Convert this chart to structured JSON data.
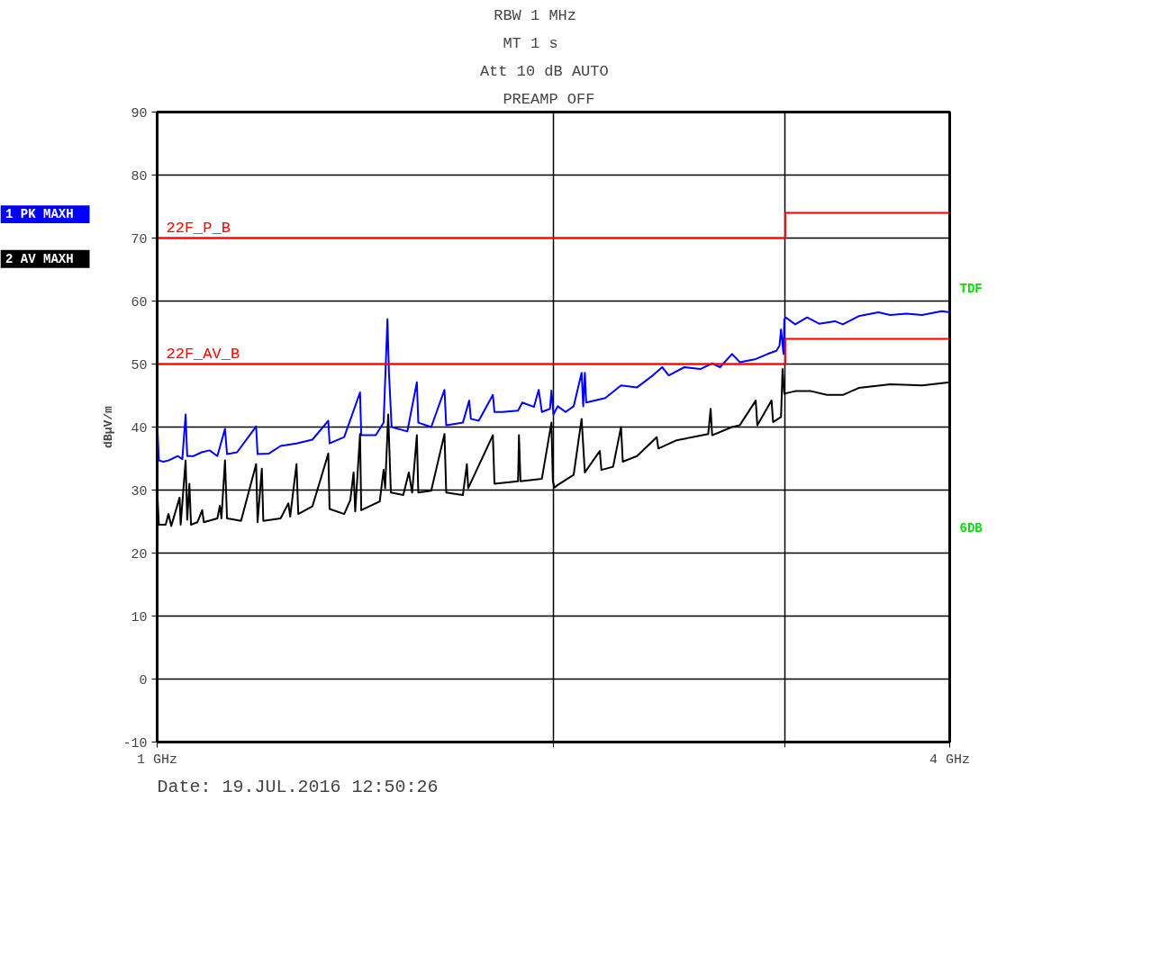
{
  "chart_data": {
    "type": "line",
    "ylabel": "dBµV/m",
    "log": "x",
    "grid": true,
    "legend": "left",
    "marker": "none",
    "line_style": "solid",
    "xlim": [
      1,
      4
    ],
    "xticks": [
      {
        "value": 1,
        "label": "1 GHz"
      },
      {
        "value": 2,
        "label": null
      },
      {
        "value": 3,
        "label": null
      },
      {
        "value": 4,
        "label": "4 GHz"
      }
    ],
    "ylim": [
      -10,
      90
    ],
    "yticks": [
      -10,
      0,
      10,
      20,
      30,
      40,
      50,
      60,
      70,
      80,
      90
    ],
    "annotations": [
      "RBW     1 MHz",
      "MT      1 s",
      "Att  10 dB  AUTO",
      "PREAMP  OFF",
      "TDF",
      "6DB",
      "Date: 19.JUL.2016  12:50:26"
    ],
    "series": [
      {
        "name": "1 PK MAXH",
        "color": "#0000ff",
        "x": [
          1.0,
          1.003,
          1.011,
          1.02,
          1.037,
          1.045,
          1.051,
          1.054,
          1.066,
          1.081,
          1.096,
          1.111,
          1.126,
          1.13,
          1.15,
          1.189,
          1.192,
          1.216,
          1.241,
          1.276,
          1.312,
          1.349,
          1.352,
          1.387,
          1.426,
          1.429,
          1.466,
          1.486,
          1.496,
          1.5,
          1.507,
          1.549,
          1.575,
          1.579,
          1.615,
          1.653,
          1.658,
          1.707,
          1.726,
          1.731,
          1.755,
          1.799,
          1.804,
          1.829,
          1.88,
          1.894,
          1.933,
          1.949,
          1.96,
          1.988,
          1.993,
          2.0,
          2.015,
          2.043,
          2.072,
          2.101,
          2.107,
          2.113,
          2.118,
          2.19,
          2.251,
          2.315,
          2.38,
          2.419,
          2.447,
          2.515,
          2.586,
          2.64,
          2.677,
          2.733,
          2.771,
          2.849,
          2.909,
          2.954,
          2.97,
          2.978,
          2.991,
          2.995,
          3.003,
          3.053,
          3.117,
          3.183,
          3.272,
          3.318,
          3.411,
          3.531,
          3.605,
          3.707,
          3.811,
          3.945,
          4.0
        ],
        "values": [
          41,
          34.7,
          34.5,
          34.7,
          35.4,
          34.9,
          42,
          35.4,
          35.4,
          36,
          36.3,
          35.4,
          39.7,
          35.7,
          36,
          40.1,
          35.7,
          35.8,
          37,
          37.4,
          38,
          41,
          37.4,
          38.4,
          45.5,
          38.7,
          38.7,
          40.7,
          57.1,
          48.6,
          40,
          39.3,
          47.1,
          40.7,
          40,
          45.9,
          40.3,
          40.7,
          44.2,
          41.3,
          41,
          45.1,
          42.4,
          42.4,
          42.6,
          43.9,
          43.2,
          45.9,
          42.4,
          42.9,
          45.8,
          42,
          43.3,
          42.4,
          43.3,
          48.6,
          43.3,
          48.6,
          43.9,
          44.6,
          46.6,
          46.3,
          48.2,
          49.5,
          48.2,
          49.5,
          49.2,
          50.1,
          49.5,
          51.6,
          50.3,
          50.8,
          51.6,
          52.1,
          52.9,
          55.5,
          51.6,
          57.1,
          57.4,
          56.3,
          57.4,
          56.4,
          56.8,
          56.3,
          57.6,
          58.2,
          57.8,
          58,
          57.8,
          58.4,
          58.2
        ]
      },
      {
        "name": "2 AV MAXH",
        "color": "#000000",
        "x": [
          1.0,
          1.003,
          1.015,
          1.02,
          1.025,
          1.04,
          1.042,
          1.051,
          1.054,
          1.058,
          1.061,
          1.073,
          1.082,
          1.085,
          1.111,
          1.116,
          1.119,
          1.126,
          1.13,
          1.158,
          1.189,
          1.192,
          1.201,
          1.204,
          1.241,
          1.258,
          1.262,
          1.276,
          1.28,
          1.312,
          1.349,
          1.352,
          1.387,
          1.402,
          1.41,
          1.414,
          1.426,
          1.429,
          1.476,
          1.486,
          1.49,
          1.498,
          1.505,
          1.538,
          1.553,
          1.562,
          1.575,
          1.579,
          1.615,
          1.653,
          1.658,
          1.707,
          1.719,
          1.723,
          1.799,
          1.804,
          1.88,
          1.883,
          1.888,
          1.96,
          1.993,
          1.998,
          2.004,
          2.015,
          2.072,
          2.101,
          2.113,
          2.169,
          2.175,
          2.22,
          2.251,
          2.258,
          2.315,
          2.396,
          2.403,
          2.481,
          2.55,
          2.622,
          2.633,
          2.64,
          2.733,
          2.771,
          2.849,
          2.857,
          2.929,
          2.937,
          2.978,
          2.986,
          2.995,
          3.053,
          3.139,
          3.227,
          3.318,
          3.411,
          3.605,
          3.811,
          4.0
        ],
        "values": [
          30.1,
          24.5,
          24.5,
          26.2,
          24.3,
          28.8,
          24.5,
          34.7,
          25.3,
          31,
          24.5,
          24.9,
          26.8,
          24.9,
          25.5,
          27.5,
          25.5,
          34.7,
          25.5,
          25.1,
          34.1,
          24.9,
          33.4,
          25.1,
          25.5,
          27.9,
          25.8,
          34.1,
          26.2,
          27.4,
          35.8,
          27,
          26.2,
          28.4,
          32.8,
          26.6,
          38.9,
          26.8,
          28.2,
          33.2,
          30.3,
          42,
          29.6,
          29.2,
          32.8,
          29.6,
          38.7,
          29.6,
          29.9,
          38.9,
          29.6,
          29.2,
          34.1,
          30.3,
          38.7,
          31,
          31.4,
          38.7,
          31.4,
          31.8,
          40.7,
          31.4,
          30.4,
          30.8,
          32.4,
          41.3,
          32.8,
          36.2,
          33.2,
          33.7,
          40,
          34.5,
          35.4,
          38.4,
          36.6,
          37.9,
          38.4,
          38.9,
          42.9,
          38.7,
          40,
          40.3,
          44.2,
          40.3,
          44.2,
          40.8,
          41.6,
          49.2,
          45.3,
          45.7,
          45.7,
          45.1,
          45.1,
          46.2,
          46.8,
          46.6,
          47.1
        ]
      },
      {
        "name": "22F_P_B",
        "type": "step",
        "color": "#ff0000",
        "x": [
          1,
          3,
          4
        ],
        "values": [
          70,
          74,
          74
        ]
      },
      {
        "name": "22F_AV_B",
        "type": "step",
        "color": "#ff0000",
        "x": [
          1,
          3,
          4
        ],
        "values": [
          50,
          54,
          54
        ]
      }
    ]
  }
}
